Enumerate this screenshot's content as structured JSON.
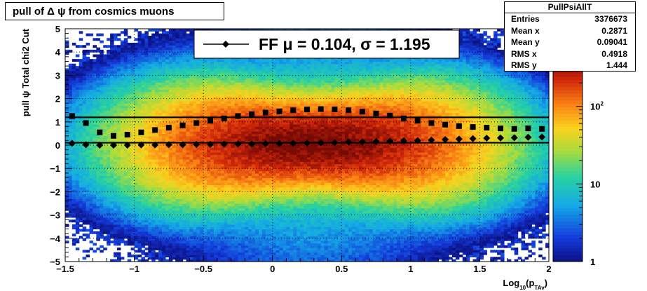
{
  "title": "pull of Δ ψ from cosmics muons",
  "stats": {
    "name": "PullPsiAllT",
    "rows": [
      {
        "key": "Entries",
        "value": "3376673"
      },
      {
        "key": "Mean x",
        "value": "0.2871"
      },
      {
        "key": "Mean y",
        "value": "0.09041"
      },
      {
        "key": "RMS x",
        "value": "0.4918"
      },
      {
        "key": "RMS y",
        "value": "1.444"
      }
    ]
  },
  "legend": {
    "label": "FF",
    "text": "FF μ =  0.104, σ =   1.195"
  },
  "chart_data": {
    "type": "heatmap",
    "title": "pull of Δ ψ from cosmics muons",
    "xlabel": "Log10(pTAv)",
    "ylabel": "pull ψ   Total chi2 Cut",
    "xlim": [
      -1.5,
      2
    ],
    "ylim": [
      -5,
      5
    ],
    "x_ticks": [
      "−1.5",
      "−1",
      "−0.5",
      "0",
      "0.5",
      "1",
      "1.5",
      "2"
    ],
    "y_ticks": [
      "5",
      "4",
      "3",
      "2",
      "1",
      "0",
      "−1",
      "−2",
      "−3",
      "−4",
      "−5"
    ],
    "colorbar": {
      "scale": "log",
      "range": [
        1,
        400
      ],
      "ticks": [
        "1",
        "10",
        "10²"
      ]
    },
    "grid": true,
    "density": {
      "x_center": 0.29,
      "y_center": 0.09,
      "x_rms": 0.49,
      "y_rms": 1.44,
      "peak": 400
    },
    "fit_lines": [
      {
        "name": "FF mean",
        "value": 0.104
      },
      {
        "name": "FF sigma",
        "value": 1.195
      }
    ],
    "series": [
      {
        "name": "mean",
        "marker": "diamond",
        "x": [
          -1.45,
          -1.35,
          -1.25,
          -1.15,
          -1.05,
          -0.95,
          -0.85,
          -0.75,
          -0.65,
          -0.55,
          -0.45,
          -0.35,
          -0.25,
          -0.15,
          -0.05,
          0.05,
          0.15,
          0.25,
          0.35,
          0.45,
          0.55,
          0.65,
          0.75,
          0.85,
          0.95,
          1.05,
          1.15,
          1.25,
          1.35,
          1.45,
          1.55,
          1.65,
          1.75,
          1.85,
          1.95
        ],
        "y": [
          0.08,
          0.02,
          0.0,
          0.0,
          0.0,
          0.01,
          0.01,
          0.02,
          0.02,
          0.03,
          0.03,
          0.04,
          0.05,
          0.05,
          0.06,
          0.07,
          0.08,
          0.09,
          0.1,
          0.11,
          0.13,
          0.14,
          0.16,
          0.17,
          0.19,
          0.2,
          0.22,
          0.24,
          0.26,
          0.28,
          0.3,
          0.31,
          0.32,
          0.34,
          0.35
        ]
      },
      {
        "name": "rms",
        "marker": "square",
        "x": [
          -1.45,
          -1.35,
          -1.25,
          -1.15,
          -1.05,
          -0.95,
          -0.85,
          -0.75,
          -0.65,
          -0.55,
          -0.45,
          -0.35,
          -0.25,
          -0.15,
          -0.05,
          0.05,
          0.15,
          0.25,
          0.35,
          0.45,
          0.55,
          0.65,
          0.75,
          0.85,
          0.95,
          1.05,
          1.15,
          1.25,
          1.35,
          1.45,
          1.55,
          1.65,
          1.75,
          1.85,
          1.95
        ],
        "y": [
          1.25,
          0.95,
          0.55,
          0.4,
          0.45,
          0.55,
          0.65,
          0.75,
          0.85,
          0.95,
          1.05,
          1.15,
          1.25,
          1.33,
          1.4,
          1.45,
          1.5,
          1.53,
          1.55,
          1.54,
          1.5,
          1.44,
          1.36,
          1.27,
          1.15,
          1.05,
          0.95,
          0.88,
          0.82,
          0.78,
          0.75,
          0.72,
          0.7,
          0.72,
          0.7
        ]
      }
    ]
  }
}
